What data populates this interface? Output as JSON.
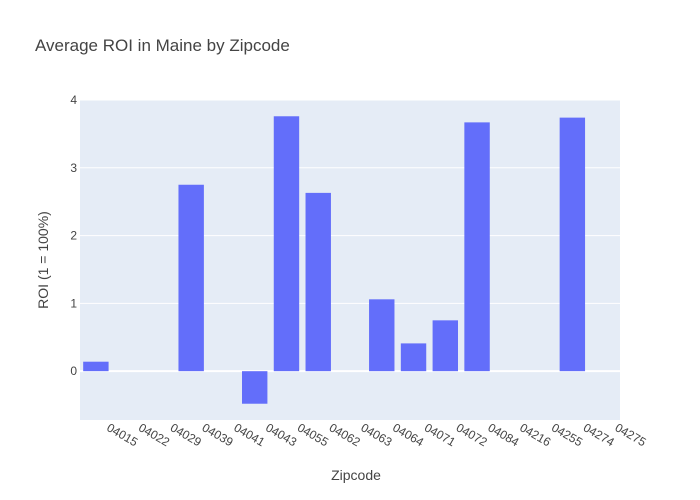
{
  "chart_data": {
    "type": "bar",
    "title": "Average ROI in Maine by Zipcode",
    "xlabel": "Zipcode",
    "ylabel": "ROI (1 = 100%)",
    "categories": [
      "04015",
      "04022",
      "04029",
      "04039",
      "04041",
      "04043",
      "04055",
      "04062",
      "04063",
      "04064",
      "04071",
      "04072",
      "04084",
      "04216",
      "04255",
      "04274",
      "04275"
    ],
    "values": [
      0.14,
      0,
      0,
      2.75,
      0,
      -0.48,
      3.76,
      2.63,
      0,
      1.06,
      0.41,
      0.75,
      3.67,
      0,
      0,
      3.74,
      0
    ],
    "ylim": [
      -0.72,
      4.0
    ],
    "yticks": [
      0,
      1,
      2,
      3,
      4
    ],
    "grid": true,
    "legend": "none",
    "colors": {
      "bar": "#636efa",
      "plot_bg": "#e5ecf6",
      "grid": "#ffffff",
      "text": "#444444"
    }
  }
}
